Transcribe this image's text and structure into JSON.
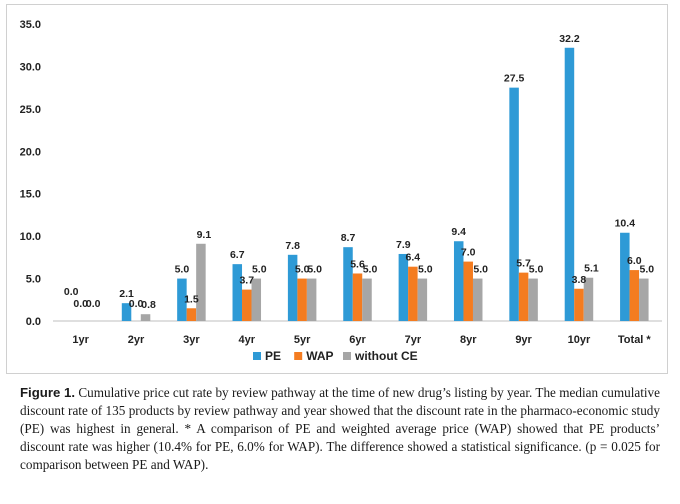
{
  "chart_data": {
    "type": "bar",
    "categories": [
      "1yr",
      "2yr",
      "3yr",
      "4yr",
      "5yr",
      "6yr",
      "7yr",
      "8yr",
      "9yr",
      "10yr",
      "Total *"
    ],
    "series": [
      {
        "name": "PE",
        "color": "#2e9ad6",
        "values": [
          0.0,
          2.1,
          5.0,
          6.7,
          7.8,
          8.7,
          7.9,
          9.4,
          27.5,
          32.2,
          10.4
        ]
      },
      {
        "name": "WAP",
        "color": "#f47c20",
        "values": [
          0.0,
          0.0,
          1.5,
          3.7,
          5.0,
          5.6,
          6.4,
          7.0,
          5.7,
          3.8,
          6.0
        ]
      },
      {
        "name": "without CE",
        "color": "#a6a6a6",
        "values": [
          0.0,
          0.8,
          9.1,
          5.0,
          5.0,
          5.0,
          5.0,
          5.0,
          5.0,
          5.1,
          5.0
        ]
      }
    ],
    "value_labels": [
      [
        "0.0",
        "2.1",
        "5.0",
        "6.7",
        "7.8",
        "8.7",
        "7.9",
        "9.4",
        "27.5",
        "32.2",
        "10.4"
      ],
      [
        "0.0",
        "0.0",
        "1.5",
        "3.7",
        "5.0",
        "5.6",
        "6.4",
        "7.0",
        "5.7",
        "3.8",
        "6.0"
      ],
      [
        "0.0",
        "0.8",
        "9.1",
        "5.0",
        "5.0",
        "5.0",
        "5.0",
        "5.0",
        "5.0",
        "5.1",
        "5.0"
      ]
    ],
    "yticks": [
      "0.0",
      "5.0",
      "10.0",
      "15.0",
      "20.0",
      "25.0",
      "30.0",
      "35.0"
    ],
    "ylim": [
      0,
      35
    ],
    "grid": false,
    "legend_position": "bottom"
  },
  "caption": {
    "label": "Figure 1.",
    "text": " Cumulative price cut rate by review pathway at the time of new drug’s listing by year. The median cumulative discount rate of 135 products by review pathway and year showed that the discount rate in the pharmaco-economic study (PE) was highest in general. * A comparison of PE and weighted average price (WAP) showed that PE products’ discount rate was higher (10.4% for PE, 6.0% for WAP). The difference showed a statistical significance. (p = 0.025 for comparison between PE and WAP)."
  }
}
